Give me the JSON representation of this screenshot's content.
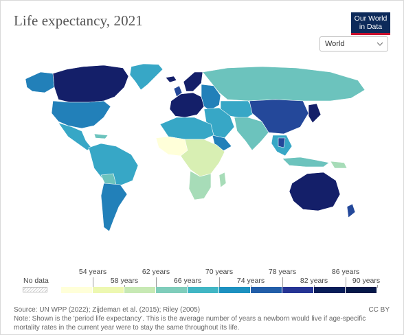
{
  "header": {
    "title": "Life expectancy, 2021",
    "logo_text_line1": "Our World",
    "logo_text_line2": "in Data",
    "region_select": {
      "value": "World"
    }
  },
  "legend": {
    "no_data_label": "No data",
    "bins": [
      {
        "label": "54 years",
        "color": "#ffffd9"
      },
      {
        "label": "58 years",
        "color": "#edf8b1"
      },
      {
        "label": "62 years",
        "color": "#c7e9b4"
      },
      {
        "label": "66 years",
        "color": "#7fcdbb"
      },
      {
        "label": "70 years",
        "color": "#41b6c4"
      },
      {
        "label": "74 years",
        "color": "#1d91c0"
      },
      {
        "label": "78 years",
        "color": "#225ea8"
      },
      {
        "label": "82 years",
        "color": "#253494"
      },
      {
        "label": "86 years",
        "color": "#081d58"
      },
      {
        "label": "90 years",
        "color": "#061848"
      }
    ]
  },
  "colors": {
    "very_low": "#ffffd9",
    "low": "#d8efb3",
    "mid_low": "#a7dcb8",
    "mid": "#6cc3bd",
    "mid_high": "#37a7c6",
    "high": "#2280b9",
    "very_high": "#24489a",
    "top": "#141f69"
  },
  "footer": {
    "source": "Source: UN WPP (2022); Zijdeman et al. (2015); Riley (2005)",
    "note_line1": "Note: Shown is the 'period life expectancy'. This is the average number of years a newborn would live if age-specific",
    "note_line2": "mortality rates in the current year were to stay the same throughout its life.",
    "license": "CC BY"
  }
}
